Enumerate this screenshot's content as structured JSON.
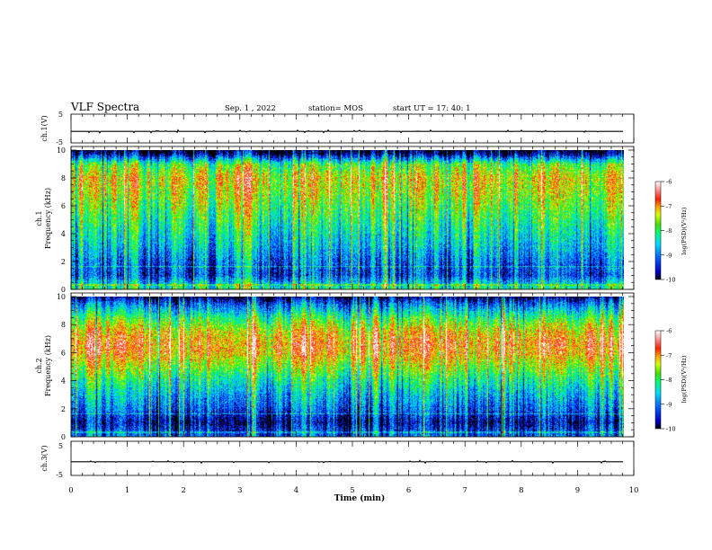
{
  "header": {
    "title": "VLF Spectra",
    "date": "Sep. 1 , 2022",
    "station": "station= MOS",
    "start_ut": "start  UT =   17: 40: 1"
  },
  "chart_data": [
    {
      "type": "line",
      "panel": "ch1-waveform",
      "ylabel": "ch.1(V)",
      "ytick_labels": [
        "5",
        "-5"
      ],
      "ylim": [
        -5,
        5
      ],
      "series": [
        {
          "values_description_free": true,
          "values": [
            -1.0
          ]
        }
      ]
    },
    {
      "type": "heatmap",
      "panel": "ch1-spectrogram",
      "ylabel": "ch.1\nFrequency (kHz)",
      "ylabel_lines": [
        "ch.1",
        "Frequency (kHz)"
      ],
      "ylim": [
        0,
        10
      ],
      "yticks": [
        0,
        2,
        4,
        6,
        8,
        10
      ],
      "xlim": [
        0,
        9.82
      ],
      "colorbar": {
        "label": "log(PSD)(V²/Hz)",
        "range": [
          -10,
          -6
        ],
        "ticks": [
          "-6",
          "-7",
          "-8",
          "-9",
          "-10"
        ]
      },
      "profile_khz": [
        0,
        1,
        2,
        3,
        4,
        5,
        6,
        7,
        8,
        9,
        9.8,
        10
      ],
      "profile_level": [
        -8.0,
        -9.2,
        -9.0,
        -8.6,
        -8.3,
        -8.0,
        -7.7,
        -7.4,
        -7.2,
        -7.8,
        -9.8,
        -10.0
      ]
    },
    {
      "type": "heatmap",
      "panel": "ch2-spectrogram",
      "ylabel_lines": [
        "ch.2",
        "Frequency (kHz)"
      ],
      "ylim": [
        0,
        10
      ],
      "yticks": [
        0,
        2,
        4,
        6,
        8,
        10
      ],
      "xlim": [
        0,
        9.82
      ],
      "colorbar": {
        "label": "log(PSD)(V²/Hz)",
        "range": [
          -10,
          -6
        ],
        "ticks": [
          "-6",
          "-7",
          "-8",
          "-9",
          "-10"
        ]
      },
      "profile_khz": [
        0,
        1,
        2,
        3,
        4,
        5,
        6,
        6.7,
        7.5,
        8.5,
        9.5,
        10
      ],
      "profile_level": [
        -9.0,
        -9.6,
        -9.0,
        -8.6,
        -8.1,
        -7.5,
        -6.9,
        -6.8,
        -7.1,
        -7.9,
        -9.0,
        -9.8
      ]
    },
    {
      "type": "line",
      "panel": "ch3-waveform",
      "ylabel": "ch.3(V)",
      "ytick_labels": [
        "5",
        "-5"
      ],
      "ylim": [
        -5,
        5
      ],
      "series": [
        {
          "values": [
            -1.0
          ]
        }
      ]
    }
  ],
  "xaxis": {
    "label": "Time (min)",
    "range": [
      0,
      10
    ],
    "tick_labels": [
      "0",
      "1",
      "2",
      "3",
      "4",
      "5",
      "6",
      "7",
      "8",
      "9",
      "10"
    ]
  },
  "colors": {
    "colormap": [
      "#00004a",
      "#0000c8",
      "#0050ff",
      "#00c8ff",
      "#00ffa0",
      "#20e000",
      "#c8ff00",
      "#ffd000",
      "#ff5000",
      "#e00000",
      "#ff9090",
      "#ffffff"
    ]
  }
}
